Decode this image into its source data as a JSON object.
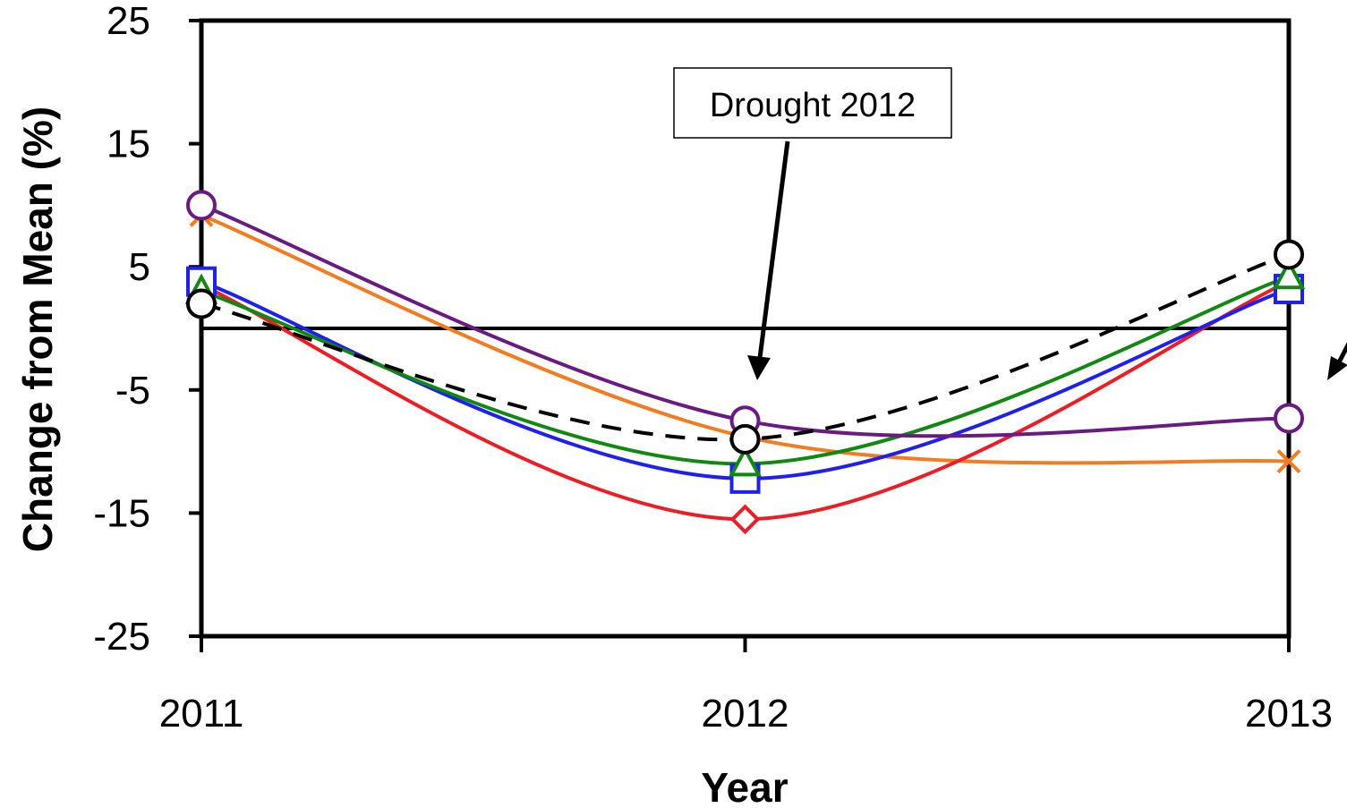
{
  "chart_data": {
    "type": "line",
    "xlabel": "Year",
    "ylabel": "Change from Mean (%)",
    "x": [
      2011,
      2012,
      2013
    ],
    "xticks": [
      "2011",
      "2012",
      "2013"
    ],
    "yticks": [
      "25",
      "15",
      "5",
      "-5",
      "-15",
      "-25"
    ],
    "ylim": [
      -25,
      25
    ],
    "reference_line_y": 0,
    "smooth": true,
    "grid": false,
    "series": [
      {
        "values": [
          9.2,
          -8.8,
          -10.8
        ],
        "color": "#f47b20",
        "marker": "x",
        "dashed": false
      },
      {
        "values": [
          3.5,
          -15.5,
          3.8
        ],
        "color": "#ee1c25",
        "marker": "diamond",
        "dashed": false
      },
      {
        "values": [
          3.8,
          -12.2,
          3.2
        ],
        "color": "#1f1fee",
        "marker": "square",
        "dashed": false
      },
      {
        "values": [
          3.0,
          -11.0,
          4.2
        ],
        "color": "#118811",
        "marker": "triangle",
        "dashed": false
      },
      {
        "values": [
          10.0,
          -7.5,
          -7.3
        ],
        "color": "#6a1a80",
        "marker": "circle",
        "dashed": false
      },
      {
        "values": [
          2.0,
          -9.0,
          6.0
        ],
        "color": "#000000",
        "marker": "circle",
        "dashed": true
      }
    ],
    "annotations": [
      {
        "text": "Drought 2012",
        "points_to_x": 2012,
        "points_to_y": -3.9
      }
    ]
  }
}
